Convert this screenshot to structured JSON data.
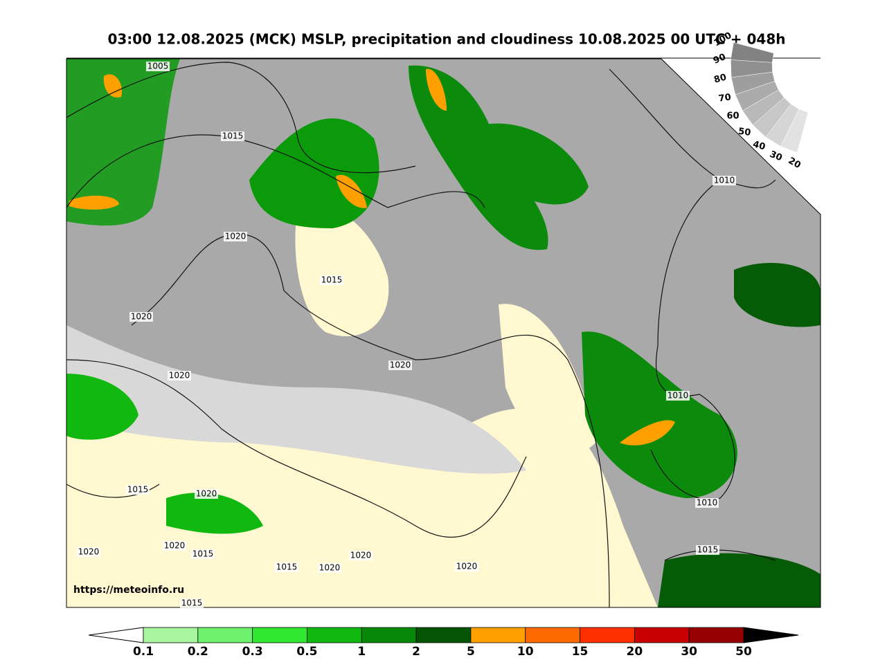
{
  "title": "03:00 12.08.2025 (MCK) MSLP, precipitation and cloudiness 10.08.2025 00 UTC + 048h",
  "source": "https://meteoinfo.ru",
  "isobar_labels": [
    "1005",
    "1015",
    "1020",
    "1015",
    "1020",
    "1020",
    "1020",
    "1010",
    "1010",
    "1010",
    "1015",
    "1020",
    "1020",
    "1020",
    "1015",
    "1015",
    "1020",
    "1020",
    "1020",
    "1015",
    "1015"
  ],
  "cloud_scale": {
    "labels": [
      "100",
      "90",
      "80",
      "70",
      "60",
      "50",
      "40",
      "30",
      "20"
    ]
  },
  "precip_scale": {
    "labels": [
      "0.1",
      "0.2",
      "0.3",
      "0.5",
      "1",
      "2",
      "5",
      "10",
      "15",
      "20",
      "30",
      "50"
    ],
    "colors": [
      "#a8f5a0",
      "#6ef06e",
      "#30e830",
      "#10b810",
      "#088808",
      "#045404",
      "#ffa000",
      "#ff6a00",
      "#ff3000",
      "#c80000",
      "#960000"
    ]
  }
}
